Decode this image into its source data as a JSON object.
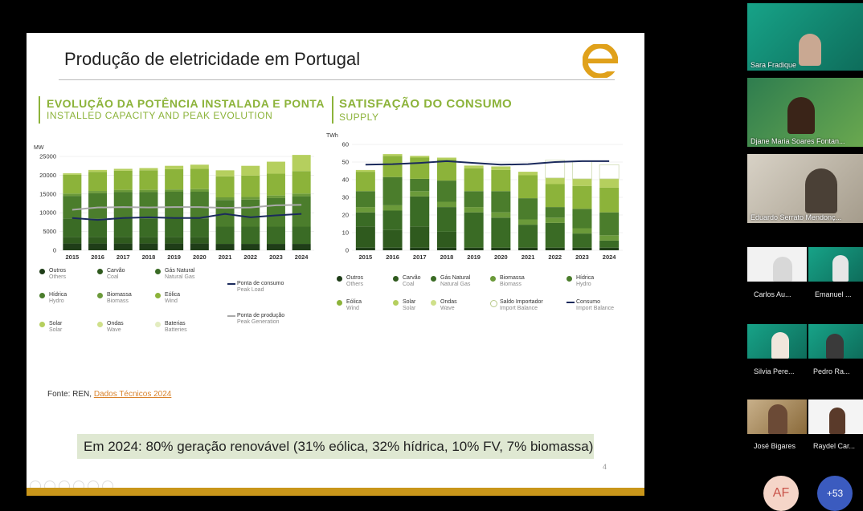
{
  "slide": {
    "title": "Produção de eletricidade em Portugal",
    "source_prefix": "Fonte: REN, ",
    "source_link": "Dados Técnicos 2024",
    "summary": "Em 2024: 80% geração renovável (31% eólica, 32% hídrica, 10% FV, 7% biomassa)",
    "page_number": "4"
  },
  "charts": {
    "left": {
      "title_pt": "EVOLUÇÃO DA POTÊNCIA INSTALADA E PONTA",
      "title_en": "INSTALLED CAPACITY AND PEAK EVOLUTION",
      "legend": [
        {
          "pt": "Outros",
          "en": "Others",
          "color": "#1f3d18",
          "type": "dot"
        },
        {
          "pt": "Carvão",
          "en": "Coal",
          "color": "#2f5a1e",
          "type": "dot"
        },
        {
          "pt": "Gás Natural",
          "en": "Natural Gas",
          "color": "#3a6b25",
          "type": "dot"
        },
        {
          "pt": "Ponta de consumo",
          "en": "Peak Load",
          "color": "#1b2a5c",
          "type": "line"
        },
        {
          "pt": "Hídrica",
          "en": "Hydro",
          "color": "#4b7d2c",
          "type": "dot"
        },
        {
          "pt": "Biomassa",
          "en": "Biomass",
          "color": "#6b9a3a",
          "type": "dot"
        },
        {
          "pt": "Eólica",
          "en": "Wind",
          "color": "#8cb33a",
          "type": "dot"
        },
        {
          "pt": "Ponta de produção",
          "en": "Peak Generation",
          "color": "#aaaaaa",
          "type": "line"
        },
        {
          "pt": "Solar",
          "en": "Solar",
          "color": "#b5cf5e",
          "type": "dot"
        },
        {
          "pt": "Ondas",
          "en": "Wave",
          "color": "#cfe08a",
          "type": "dot"
        },
        {
          "pt": "Baterias",
          "en": "Batteries",
          "color": "#e3ecc0",
          "type": "dot"
        }
      ]
    },
    "right": {
      "title_pt": "SATISFAÇÃO DO CONSUMO",
      "title_en": "SUPPLY",
      "legend": [
        {
          "pt": "Outros",
          "en": "Others",
          "color": "#1f3d18",
          "type": "dot"
        },
        {
          "pt": "Carvão",
          "en": "Coal",
          "color": "#2f5a1e",
          "type": "dot"
        },
        {
          "pt": "Gás Natural",
          "en": "Natural Gas",
          "color": "#3a6b25",
          "type": "dot"
        },
        {
          "pt": "Biomassa",
          "en": "Biomass",
          "color": "#6b9a3a",
          "type": "dot"
        },
        {
          "pt": "Hídrica",
          "en": "Hydro",
          "color": "#4b7d2c",
          "type": "dot"
        },
        {
          "pt": "Eólica",
          "en": "Wind",
          "color": "#8cb33a",
          "type": "dot"
        },
        {
          "pt": "Solar",
          "en": "Solar",
          "color": "#b5cf5e",
          "type": "dot"
        },
        {
          "pt": "Ondas",
          "en": "Wave",
          "color": "#cfe08a",
          "type": "dot"
        },
        {
          "pt": "Saldo Importador",
          "en": "Import Balance",
          "color": "#ffffff",
          "type": "ring"
        },
        {
          "pt": "Consumo",
          "en": "Import Balance",
          "color": "#1b2a5c",
          "type": "line"
        }
      ]
    }
  },
  "chart_data": [
    {
      "type": "bar",
      "ylabel": "MW",
      "ylim": [
        0,
        25000
      ],
      "yticks": [
        0,
        5000,
        10000,
        15000,
        20000,
        25000
      ],
      "categories": [
        "2015",
        "2016",
        "2017",
        "2018",
        "2019",
        "2020",
        "2021",
        "2022",
        "2023",
        "2024"
      ],
      "series": [
        {
          "name": "Outros",
          "color": "#1f3d18",
          "values": [
            1800,
            1800,
            1800,
            1800,
            1800,
            1800,
            1700,
            1700,
            1700,
            1700
          ]
        },
        {
          "name": "Carvão",
          "color": "#2f5a1e",
          "values": [
            1800,
            1800,
            1800,
            1800,
            1800,
            1800,
            0,
            0,
            0,
            0
          ]
        },
        {
          "name": "Gás Natural",
          "color": "#3a6b25",
          "values": [
            4900,
            4900,
            4900,
            4900,
            4900,
            4900,
            4600,
            4600,
            4600,
            4600
          ]
        },
        {
          "name": "Hídrica",
          "color": "#4b7d2c",
          "values": [
            6000,
            6700,
            7000,
            7000,
            7100,
            7100,
            7100,
            7200,
            7600,
            8100
          ]
        },
        {
          "name": "Biomassa",
          "color": "#6b9a3a",
          "values": [
            600,
            600,
            600,
            600,
            600,
            700,
            700,
            700,
            700,
            700
          ]
        },
        {
          "name": "Eólica",
          "color": "#8cb33a",
          "values": [
            5000,
            5100,
            5100,
            5200,
            5400,
            5400,
            5600,
            5700,
            5800,
            6000
          ]
        },
        {
          "name": "Solar",
          "color": "#b5cf5e",
          "values": [
            400,
            500,
            500,
            600,
            900,
            1100,
            1600,
            2600,
            3200,
            4300
          ]
        },
        {
          "name": "Ondas",
          "color": "#cfe08a",
          "values": [
            0,
            0,
            0,
            0,
            0,
            0,
            0,
            0,
            0,
            0
          ]
        },
        {
          "name": "Baterias",
          "color": "#e3ecc0",
          "values": [
            0,
            0,
            0,
            0,
            0,
            0,
            0,
            0,
            0,
            0
          ]
        }
      ],
      "lines": [
        {
          "name": "Ponta de consumo",
          "color": "#1b2a5c",
          "values": [
            8600,
            8100,
            8600,
            8800,
            8600,
            8600,
            9700,
            8800,
            9300,
            9700
          ]
        },
        {
          "name": "Ponta de produção",
          "color": "#aaaaaa",
          "values": [
            10800,
            11400,
            11500,
            11400,
            11500,
            11500,
            11300,
            11400,
            12000,
            12100
          ]
        }
      ]
    },
    {
      "type": "bar",
      "ylabel": "TWh",
      "ylim": [
        0,
        60
      ],
      "yticks": [
        0,
        10,
        20,
        30,
        40,
        50,
        60
      ],
      "categories": [
        "2015",
        "2016",
        "2017",
        "2018",
        "2019",
        "2020",
        "2021",
        "2022",
        "2023",
        "2024"
      ],
      "series": [
        {
          "name": "Outros",
          "color": "#1f3d18",
          "values": [
            1.5,
            1.5,
            1.5,
            1.5,
            1.5,
            1.5,
            1.5,
            1.5,
            1.5,
            1.5
          ]
        },
        {
          "name": "Carvão",
          "color": "#2f5a1e",
          "values": [
            12,
            10,
            12,
            9,
            0,
            0,
            0,
            0,
            0,
            0
          ]
        },
        {
          "name": "Gás Natural",
          "color": "#3a6b25",
          "values": [
            8,
            11,
            17,
            14,
            20,
            17,
            13,
            14,
            8,
            4
          ]
        },
        {
          "name": "Biomassa",
          "color": "#6b9a3a",
          "values": [
            3,
            3,
            3,
            3,
            3,
            3,
            3,
            3,
            3,
            3
          ]
        },
        {
          "name": "Hídrica",
          "color": "#4b7d2c",
          "values": [
            9,
            16,
            7,
            12,
            9,
            12,
            12,
            6,
            11,
            13
          ]
        },
        {
          "name": "Eólica",
          "color": "#8cb33a",
          "values": [
            11,
            12,
            12,
            12,
            13,
            12,
            13,
            13,
            13,
            14
          ]
        },
        {
          "name": "Solar",
          "color": "#b5cf5e",
          "values": [
            1,
            1,
            1,
            1,
            1.5,
            2,
            2,
            3.5,
            4,
            5
          ]
        },
        {
          "name": "Ondas",
          "color": "#cfe08a",
          "values": [
            0,
            0,
            0,
            0,
            0,
            0,
            0,
            0,
            0,
            0
          ]
        },
        {
          "name": "Saldo Importador",
          "color": "#ffffff",
          "values": [
            0,
            0,
            0,
            0,
            0,
            0,
            0,
            10,
            10,
            8
          ]
        }
      ],
      "lines": [
        {
          "name": "Consumo",
          "color": "#1b2a5c",
          "values": [
            48.5,
            48.8,
            49.5,
            50.5,
            49.5,
            48.5,
            48.8,
            50,
            50.5,
            50.5
          ]
        }
      ]
    }
  ],
  "participants": [
    {
      "name": "Sara Fradique"
    },
    {
      "name": "Djane Maria Soares Fontan..."
    },
    {
      "name": "Eduardo Serrato Mendonç..."
    },
    {
      "name": "Carlos Au..."
    },
    {
      "name": "Emanuel ..."
    },
    {
      "name": "Silvia Pere..."
    },
    {
      "name": "Pedro Ra..."
    },
    {
      "name": "José Bigares"
    },
    {
      "name": "Raydel Car..."
    }
  ],
  "avatar_initials": "AF",
  "more_count": "+53"
}
